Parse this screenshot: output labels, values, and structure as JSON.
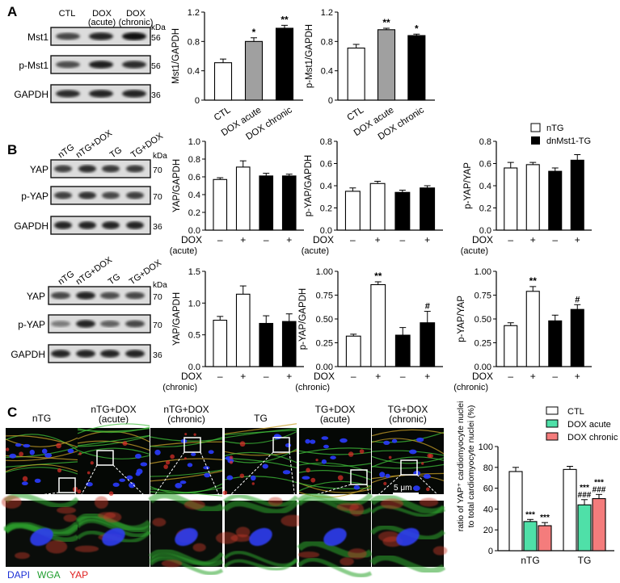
{
  "panel_labels": [
    "A",
    "B",
    "C"
  ],
  "colors": {
    "white_bar": "#ffffff",
    "gray_bar": "#a0a0a0",
    "black_bar": "#000000",
    "ctl": "#ffffff",
    "dox_acute": "#4fe0a8",
    "dox_chronic": "#f47c7c",
    "dapi": "#1a2fd6",
    "wga": "#1f9e2e",
    "yap": "#e02020"
  },
  "blotA": {
    "headers": [
      "CTL",
      "DOX\n(acute)",
      "DOX\n(chronic)"
    ],
    "rows": [
      "Mst1",
      "p-Mst1",
      "GAPDH"
    ],
    "kda_title": "kDa",
    "kda": [
      "56",
      "56",
      "36"
    ]
  },
  "blotB1": {
    "headers": [
      "nTG",
      "nTG+DOX",
      "TG",
      "TG+DOX"
    ],
    "rows": [
      "YAP",
      "p-YAP",
      "GAPDH"
    ],
    "kda_title": "kDa",
    "kda": [
      "70",
      "70",
      "36"
    ]
  },
  "blotB2": {
    "headers": [
      "nTG",
      "nTG+DOX",
      "TG",
      "TG+DOX"
    ],
    "rows": [
      "YAP",
      "p-YAP",
      "GAPDH"
    ],
    "kda_title": "kDa",
    "kda": [
      "70",
      "70",
      "36"
    ]
  },
  "legendB": [
    "nTG",
    "dnMst1-TG"
  ],
  "chart_data": [
    {
      "id": "a1",
      "type": "bar",
      "ylabel": "Mst1/GAPDH",
      "ylim": [
        0,
        1.2
      ],
      "yticks": [
        "0",
        "0.4",
        "0.8",
        "1.2"
      ],
      "yticks_val": [
        0,
        0.4,
        0.8,
        1.2
      ],
      "categories": [
        "CTL",
        "DOX acute",
        "DOX chronic"
      ],
      "values": [
        0.51,
        0.8,
        0.98
      ],
      "errors": [
        0.05,
        0.05,
        0.04
      ],
      "sig": [
        "",
        "*",
        "**"
      ],
      "fills": [
        "white",
        "gray",
        "black"
      ]
    },
    {
      "id": "a2",
      "type": "bar",
      "ylabel": "p-Mst1/GAPDH",
      "ylim": [
        0,
        1.2
      ],
      "yticks": [
        "0",
        "0.4",
        "0.8",
        "1.2"
      ],
      "yticks_val": [
        0,
        0.4,
        0.8,
        1.2
      ],
      "categories": [
        "CTL",
        "DOX acute",
        "DOX chronic"
      ],
      "values": [
        0.71,
        0.96,
        0.88
      ],
      "errors": [
        0.05,
        0.02,
        0.02
      ],
      "sig": [
        "",
        "**",
        "*"
      ],
      "fills": [
        "white",
        "gray",
        "black"
      ]
    },
    {
      "id": "b1",
      "type": "bar",
      "ylabel": "YAP/GAPDH",
      "ylim": [
        0,
        1.0
      ],
      "yticks": [
        "0.0",
        "0.2",
        "0.4",
        "0.6",
        "0.8",
        "1.0"
      ],
      "yticks_val": [
        0,
        0.2,
        0.4,
        0.6,
        0.8,
        1.0
      ],
      "values": [
        0.57,
        0.71,
        0.61,
        0.61
      ],
      "errors": [
        0.02,
        0.07,
        0.03,
        0.02
      ],
      "sig": [
        "",
        "",
        "",
        ""
      ],
      "fills": [
        "white",
        "white",
        "black",
        "black"
      ],
      "dox_label": "DOX",
      "dox_sub": "(acute)",
      "dox_signs": [
        "–",
        "+",
        "–",
        "+"
      ]
    },
    {
      "id": "b2",
      "type": "bar",
      "ylabel": "p-YAP/GAPDH",
      "ylim": [
        0,
        0.8
      ],
      "yticks": [
        "0.0",
        "0.2",
        "0.4",
        "0.6",
        "0.8"
      ],
      "yticks_val": [
        0,
        0.2,
        0.4,
        0.6,
        0.8
      ],
      "values": [
        0.35,
        0.42,
        0.34,
        0.38
      ],
      "errors": [
        0.03,
        0.02,
        0.02,
        0.02
      ],
      "sig": [
        "",
        "",
        "",
        ""
      ],
      "fills": [
        "white",
        "white",
        "black",
        "black"
      ],
      "dox_label": "DOX",
      "dox_sub": "(acute)",
      "dox_signs": [
        "–",
        "+",
        "–",
        "+"
      ]
    },
    {
      "id": "b3",
      "type": "bar",
      "ylabel": "p-YAP/YAP",
      "ylim": [
        0,
        0.8
      ],
      "yticks": [
        "0.0",
        "0.2",
        "0.4",
        "0.6",
        "0.8"
      ],
      "yticks_val": [
        0,
        0.2,
        0.4,
        0.6,
        0.8
      ],
      "values": [
        0.56,
        0.59,
        0.53,
        0.63
      ],
      "errors": [
        0.05,
        0.02,
        0.03,
        0.05
      ],
      "sig": [
        "",
        "",
        "",
        ""
      ],
      "fills": [
        "white",
        "white",
        "black",
        "black"
      ],
      "dox_label": "DOX",
      "dox_sub": "(acute)",
      "dox_signs": [
        "–",
        "+",
        "–",
        "+"
      ]
    },
    {
      "id": "b4",
      "type": "bar",
      "ylabel": "YAP/GAPDH",
      "ylim": [
        0,
        1.5
      ],
      "yticks": [
        "0.0",
        "0.5",
        "1.0",
        "1.5"
      ],
      "yticks_val": [
        0,
        0.5,
        1.0,
        1.5
      ],
      "values": [
        0.73,
        1.14,
        0.68,
        0.71
      ],
      "errors": [
        0.06,
        0.13,
        0.12,
        0.12
      ],
      "sig": [
        "",
        "",
        "",
        ""
      ],
      "fills": [
        "white",
        "white",
        "black",
        "black"
      ],
      "dox_label": "DOX",
      "dox_sub": "(chronic)",
      "dox_signs": [
        "–",
        "+",
        "–",
        "+"
      ]
    },
    {
      "id": "b5",
      "type": "bar",
      "ylabel": "p-YAP/GAPDH",
      "ylim": [
        0,
        1.0
      ],
      "yticks": [
        "0.00",
        "0.25",
        "0.50",
        "0.75",
        "1.00"
      ],
      "yticks_val": [
        0,
        0.25,
        0.5,
        0.75,
        1.0
      ],
      "values": [
        0.32,
        0.86,
        0.33,
        0.46
      ],
      "errors": [
        0.02,
        0.03,
        0.08,
        0.12
      ],
      "sig": [
        "",
        "**",
        "",
        "#"
      ],
      "fills": [
        "white",
        "white",
        "black",
        "black"
      ],
      "dox_label": "DOX",
      "dox_sub": "(chronic)",
      "dox_signs": [
        "–",
        "+",
        "–",
        "+"
      ]
    },
    {
      "id": "b6",
      "type": "bar",
      "ylabel": "p-YAP/YAP",
      "ylim": [
        0,
        1.0
      ],
      "yticks": [
        "0.00",
        "0.25",
        "0.50",
        "0.75",
        "1.00"
      ],
      "yticks_val": [
        0,
        0.25,
        0.5,
        0.75,
        1.0
      ],
      "values": [
        0.43,
        0.79,
        0.48,
        0.6
      ],
      "errors": [
        0.03,
        0.05,
        0.06,
        0.05
      ],
      "sig": [
        "",
        "**",
        "",
        "#"
      ],
      "fills": [
        "white",
        "white",
        "black",
        "black"
      ],
      "dox_label": "DOX",
      "dox_sub": "(chronic)",
      "dox_signs": [
        "–",
        "+",
        "–",
        "+"
      ]
    },
    {
      "id": "c1",
      "type": "bar",
      "ylabel_lines": [
        "ratio of YAP⁺ cardiomyocyte nuclei",
        "to total cardiomyocyte nuclei (%)"
      ],
      "ylim": [
        0,
        100
      ],
      "yticks": [
        "0",
        "20",
        "40",
        "60",
        "80",
        "100"
      ],
      "yticks_val": [
        0,
        20,
        40,
        60,
        80,
        100
      ],
      "categories": [
        "nTG",
        "TG"
      ],
      "series": [
        {
          "name": "CTL",
          "values": [
            76,
            78
          ],
          "errors": [
            4,
            3
          ],
          "sig": [
            "",
            ""
          ]
        },
        {
          "name": "DOX acute",
          "values": [
            28,
            44
          ],
          "errors": [
            2,
            5
          ],
          "sig": [
            "***",
            "***\n###"
          ]
        },
        {
          "name": "DOX chronic",
          "values": [
            24,
            50
          ],
          "errors": [
            3,
            4
          ],
          "sig": [
            "***",
            "***\n###"
          ]
        }
      ]
    }
  ],
  "micro": {
    "labels": [
      "nTG",
      "nTG+DOX\n(acute)",
      "nTG+DOX\n(chronic)",
      "TG",
      "TG+DOX\n(acute)",
      "TG+DOX\n(chronic)"
    ],
    "scale_bar": "5 μm",
    "stain_labels": [
      "DAPI",
      "WGA",
      "YAP"
    ]
  }
}
